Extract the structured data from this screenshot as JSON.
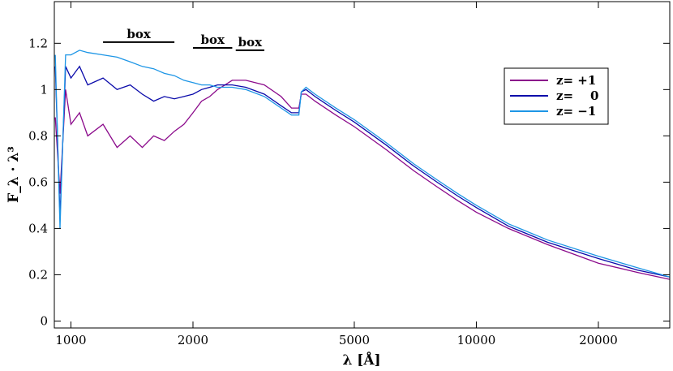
{
  "chart_data": {
    "type": "line",
    "xlabel": "λ [Å]",
    "ylabel": "F_λ · λ³",
    "x_scale": "log",
    "xlim": [
      910,
      30000
    ],
    "ylim": [
      -0.03,
      1.38
    ],
    "x_ticks": [
      1000,
      2000,
      5000,
      10000,
      20000
    ],
    "x_tick_labels": [
      "1000",
      "2000",
      "5000",
      "10000",
      "20000"
    ],
    "y_ticks": [
      0,
      0.2,
      0.4,
      0.6,
      0.8,
      1,
      1.2
    ],
    "y_tick_labels": [
      "0",
      "0.2",
      "0.4",
      "0.6",
      "0.8",
      "1",
      "1.2"
    ],
    "grid": false,
    "legend_position": "upper-right",
    "series": [
      {
        "name": "z= +1",
        "color": "#8B0A8B",
        "x": [
          915,
          940,
          970,
          1000,
          1050,
          1100,
          1200,
          1300,
          1400,
          1500,
          1600,
          1700,
          1800,
          1900,
          2000,
          2100,
          2200,
          2300,
          2400,
          2500,
          2700,
          3000,
          3300,
          3500,
          3650,
          3700,
          3800,
          4000,
          4500,
          5000,
          6000,
          7000,
          8000,
          9000,
          10000,
          12000,
          15000,
          20000,
          25000,
          30000
        ],
        "y": [
          0.88,
          0.55,
          1.0,
          0.85,
          0.9,
          0.8,
          0.85,
          0.75,
          0.8,
          0.75,
          0.8,
          0.78,
          0.82,
          0.85,
          0.9,
          0.95,
          0.97,
          1.0,
          1.02,
          1.04,
          1.04,
          1.02,
          0.97,
          0.92,
          0.92,
          0.98,
          0.98,
          0.95,
          0.89,
          0.84,
          0.74,
          0.65,
          0.58,
          0.52,
          0.47,
          0.4,
          0.33,
          0.25,
          0.21,
          0.18
        ]
      },
      {
        "name": "z=    0",
        "color": "#0A0AAA",
        "x": [
          915,
          940,
          970,
          1000,
          1050,
          1100,
          1200,
          1300,
          1400,
          1500,
          1600,
          1700,
          1800,
          1900,
          2000,
          2100,
          2200,
          2300,
          2400,
          2500,
          2700,
          3000,
          3300,
          3500,
          3650,
          3700,
          3800,
          4000,
          4500,
          5000,
          6000,
          7000,
          8000,
          9000,
          10000,
          12000,
          15000,
          20000,
          25000,
          30000
        ],
        "y": [
          1.1,
          0.45,
          1.1,
          1.05,
          1.1,
          1.02,
          1.05,
          1.0,
          1.02,
          0.98,
          0.95,
          0.97,
          0.96,
          0.97,
          0.98,
          1.0,
          1.01,
          1.02,
          1.02,
          1.02,
          1.01,
          0.98,
          0.93,
          0.9,
          0.9,
          0.99,
          1.0,
          0.97,
          0.91,
          0.86,
          0.76,
          0.67,
          0.6,
          0.54,
          0.49,
          0.41,
          0.34,
          0.27,
          0.22,
          0.19
        ]
      },
      {
        "name": "z= −1",
        "color": "#1E96E6",
        "x": [
          915,
          940,
          970,
          1000,
          1050,
          1100,
          1200,
          1300,
          1400,
          1500,
          1600,
          1700,
          1800,
          1900,
          2000,
          2100,
          2200,
          2300,
          2400,
          2500,
          2700,
          3000,
          3300,
          3500,
          3650,
          3700,
          3800,
          4000,
          4500,
          5000,
          6000,
          7000,
          8000,
          9000,
          10000,
          12000,
          15000,
          20000,
          25000,
          30000
        ],
        "y": [
          1.15,
          0.4,
          1.15,
          1.15,
          1.17,
          1.16,
          1.15,
          1.14,
          1.12,
          1.1,
          1.09,
          1.07,
          1.06,
          1.04,
          1.03,
          1.02,
          1.02,
          1.01,
          1.01,
          1.01,
          1.0,
          0.97,
          0.92,
          0.89,
          0.89,
          0.99,
          1.01,
          0.98,
          0.92,
          0.87,
          0.77,
          0.68,
          0.61,
          0.55,
          0.5,
          0.42,
          0.35,
          0.28,
          0.23,
          0.19
        ]
      }
    ],
    "annotations": [
      {
        "text": "box",
        "x_range": [
          1200,
          1800
        ],
        "y": 1.205
      },
      {
        "text": "box",
        "x_range": [
          2000,
          2500
        ],
        "y": 1.18
      },
      {
        "text": "box",
        "x_range": [
          2550,
          3000
        ],
        "y": 1.17
      }
    ]
  }
}
